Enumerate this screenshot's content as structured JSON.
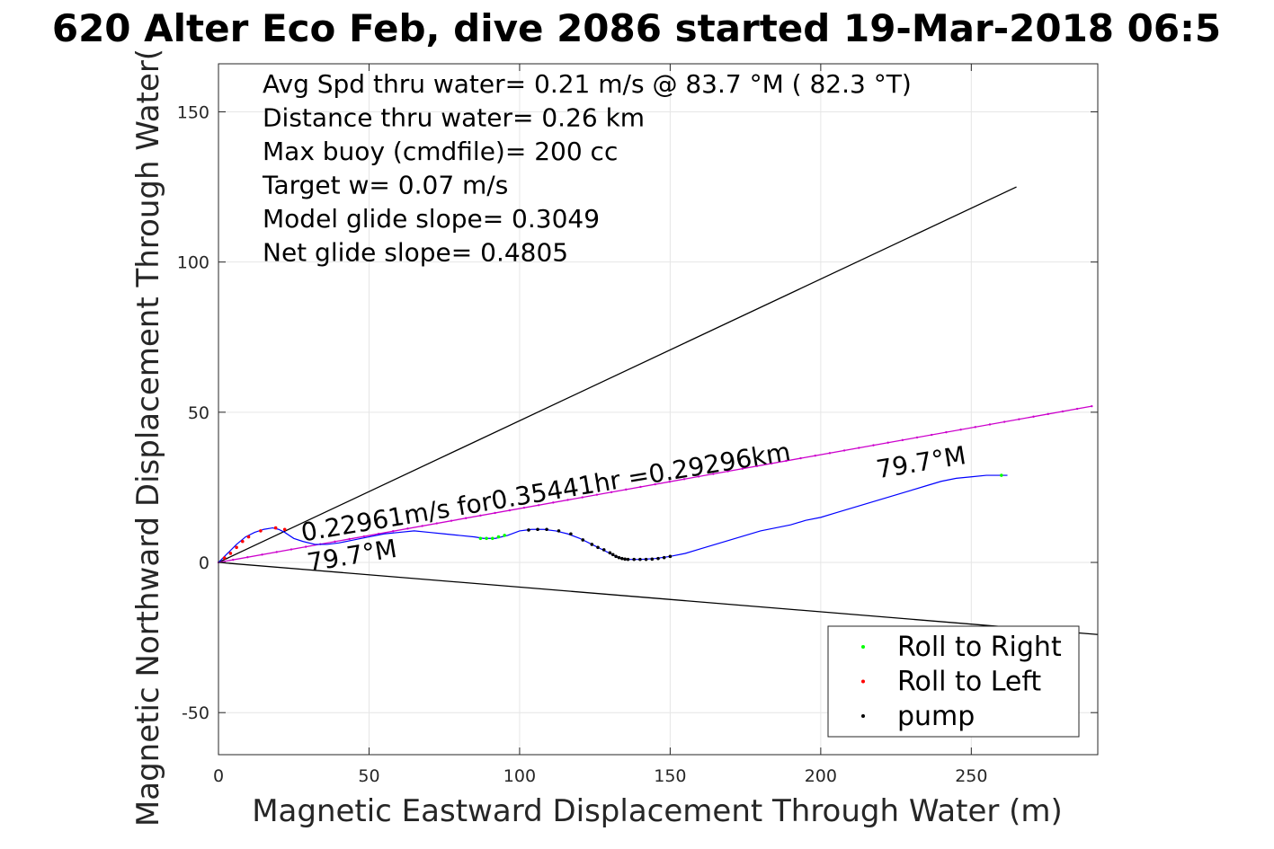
{
  "chart_data": {
    "type": "scatter",
    "title": "620 Alter Eco Feb, dive 2086 started 19-Mar-2018 06:5",
    "xlabel": "Magnetic Eastward Displacement Through Water (m)",
    "ylabel": "Magnetic Northward Displacement Through Water(",
    "xlim": [
      0,
      292
    ],
    "ylim": [
      -64,
      166
    ],
    "xticks": [
      0,
      50,
      100,
      150,
      200,
      250
    ],
    "yticks": [
      -50,
      0,
      50,
      100,
      150
    ],
    "grid": true,
    "legend_position": "bottom-right",
    "info_lines": [
      "Avg Spd thru water=  0.21 m/s @  83.7 °M ( 82.3 °T)",
      "Distance thru water=  0.26 km",
      "Max buoy (cmdfile)= 200 cc",
      "Target w= 0.07 m/s",
      "Model glide slope= 0.3049",
      "Net glide slope= 0.4805"
    ],
    "annotations": [
      {
        "text": "0.22961m/s for0.35441hr =0.29296km",
        "x": 28,
        "y": 7,
        "rotation_deg": -9.5
      },
      {
        "text": "79.7°M",
        "x": 30,
        "y": -3,
        "rotation_deg": -9.5
      },
      {
        "text": "79.7°M",
        "x": 219,
        "y": 28,
        "rotation_deg": -9.5
      }
    ],
    "reference_lines": [
      {
        "name": "upper bound",
        "x": [
          0,
          265
        ],
        "y": [
          0,
          125
        ],
        "color": "#000000"
      },
      {
        "name": "lower bound",
        "x": [
          0,
          292
        ],
        "y": [
          0,
          -24
        ],
        "color": "#000000"
      },
      {
        "name": "course",
        "x": [
          0,
          290
        ],
        "y": [
          0,
          52
        ],
        "color": "#cc00cc"
      }
    ],
    "track": {
      "color": "#0000ff",
      "x": [
        0,
        3,
        6,
        9,
        12,
        15,
        18,
        20,
        22,
        25,
        28,
        32,
        36,
        40,
        45,
        50,
        55,
        60,
        65,
        70,
        75,
        80,
        85,
        88,
        92,
        96,
        100,
        104,
        108,
        112,
        116,
        120,
        124,
        128,
        131,
        133,
        135,
        137,
        140,
        145,
        150,
        155,
        160,
        165,
        170,
        175,
        180,
        185,
        190,
        195,
        200,
        205,
        210,
        215,
        220,
        225,
        230,
        235,
        240,
        245,
        250,
        255,
        260,
        262
      ],
      "y": [
        0,
        3,
        6,
        8.5,
        10,
        11,
        11.5,
        11,
        10,
        8,
        7,
        6,
        6,
        6.5,
        7.5,
        8.5,
        9.5,
        10,
        10.5,
        10,
        9.5,
        9,
        8.5,
        8,
        8,
        9,
        10.5,
        11,
        11,
        10.5,
        9.5,
        8,
        6,
        4,
        2.5,
        1.5,
        1,
        1,
        1,
        1.3,
        2,
        3,
        4.5,
        6,
        7.5,
        9,
        10.5,
        11.5,
        12.5,
        14,
        15,
        16.5,
        18,
        19.5,
        21,
        22.5,
        24,
        25.5,
        27,
        28,
        28.5,
        29,
        29,
        29
      ]
    },
    "series": [
      {
        "name": "Roll to Right",
        "color": "#00ff00",
        "x": [
          87,
          89,
          91,
          93,
          95,
          260
        ],
        "y": [
          8,
          8,
          8,
          8.5,
          9,
          29
        ]
      },
      {
        "name": "Roll to Left",
        "color": "#ff0000",
        "x": [
          2,
          4,
          6,
          8,
          10,
          14,
          19,
          22
        ],
        "y": [
          1.5,
          3,
          5,
          7,
          8.5,
          10.5,
          11.5,
          11
        ]
      },
      {
        "name": "pump",
        "color": "#000000",
        "x": [
          103,
          106,
          109,
          113,
          117,
          121,
          124,
          126,
          128,
          130,
          131,
          132,
          133,
          134,
          135,
          136,
          138,
          140,
          142,
          144,
          146,
          148,
          150
        ],
        "y": [
          10.8,
          11,
          11,
          10.5,
          9.5,
          7.5,
          6,
          5,
          4.2,
          3.2,
          2.6,
          2,
          1.6,
          1.3,
          1.1,
          1,
          1,
          1,
          1,
          1.1,
          1.3,
          1.6,
          2
        ]
      }
    ],
    "course_marker_color": "#cc00cc"
  }
}
